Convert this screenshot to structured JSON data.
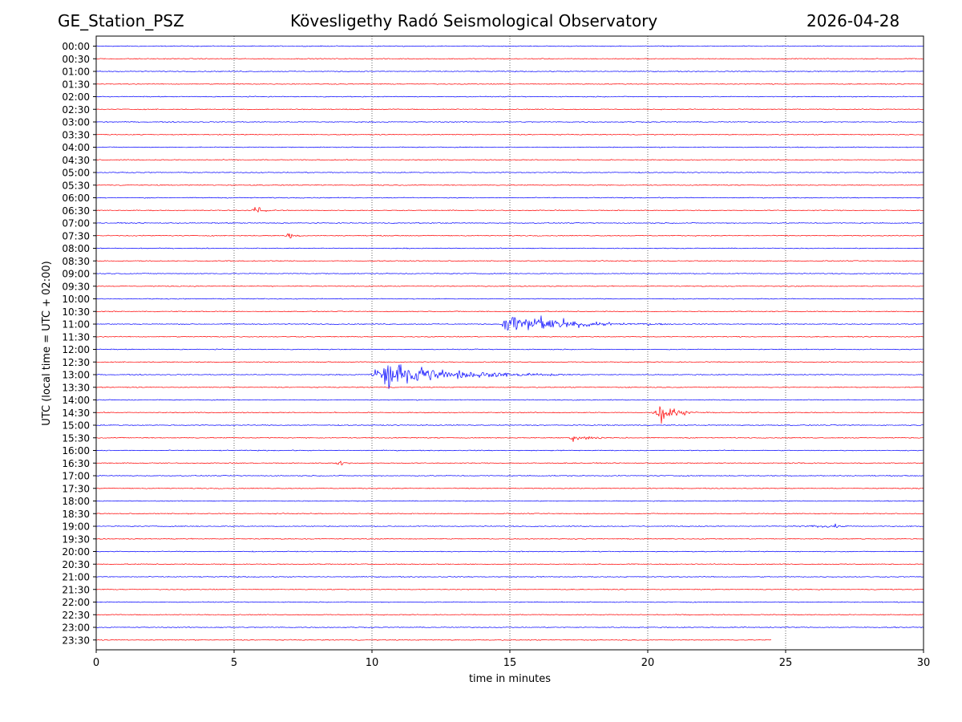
{
  "header": {
    "station": "GE_Station_PSZ",
    "observatory": "Kövesligethy Radó Seismological Observatory",
    "date": "2026-04-28"
  },
  "chart_data": {
    "type": "line",
    "title": "Kövesligethy Radó Seismological Observatory",
    "xlabel": "time in minutes",
    "ylabel": "UTC (local time = UTC + 02:00)",
    "xlim": [
      0,
      30
    ],
    "xticks": [
      0,
      5,
      10,
      15,
      20,
      25,
      30
    ],
    "vertical_grid": [
      5,
      10,
      15,
      20,
      25
    ],
    "colors": [
      "#0000ff",
      "#ff0000"
    ],
    "rows": [
      "00:00",
      "00:30",
      "01:00",
      "01:30",
      "02:00",
      "02:30",
      "03:00",
      "03:30",
      "04:00",
      "04:30",
      "05:00",
      "05:30",
      "06:00",
      "06:30",
      "07:00",
      "07:30",
      "08:00",
      "08:30",
      "09:00",
      "09:30",
      "10:00",
      "10:30",
      "11:00",
      "11:30",
      "12:00",
      "12:30",
      "13:00",
      "13:30",
      "14:00",
      "14:30",
      "15:00",
      "15:30",
      "16:00",
      "16:30",
      "17:00",
      "17:30",
      "18:00",
      "18:30",
      "19:00",
      "19:30",
      "20:00",
      "20:30",
      "21:00",
      "21:30",
      "22:00",
      "22:30",
      "23:00",
      "23:30"
    ],
    "last_row_end_minutes": 24.5,
    "noise_amplitude": 0.05,
    "events": [
      {
        "row": "06:30",
        "start": 5.5,
        "peak": 5.8,
        "end": 7.0,
        "amplitude": 0.25
      },
      {
        "row": "07:30",
        "start": 6.8,
        "peak": 6.95,
        "end": 8.0,
        "amplitude": 0.2
      },
      {
        "row": "11:00",
        "start": 14.6,
        "peak": 15.0,
        "end": 21.0,
        "amplitude": 0.75
      },
      {
        "row": "13:00",
        "start": 9.9,
        "peak": 10.6,
        "end": 17.5,
        "amplitude": 0.9
      },
      {
        "row": "14:30",
        "start": 20.1,
        "peak": 20.5,
        "end": 22.2,
        "amplitude": 0.55
      },
      {
        "row": "15:30",
        "start": 17.1,
        "peak": 17.3,
        "end": 19.5,
        "amplitude": 0.25
      },
      {
        "row": "16:30",
        "start": 8.5,
        "peak": 8.9,
        "end": 9.5,
        "amplitude": 0.12
      },
      {
        "row": "19:00",
        "start": 24.8,
        "peak": 26.8,
        "end": 28.5,
        "amplitude": 0.1
      }
    ]
  }
}
